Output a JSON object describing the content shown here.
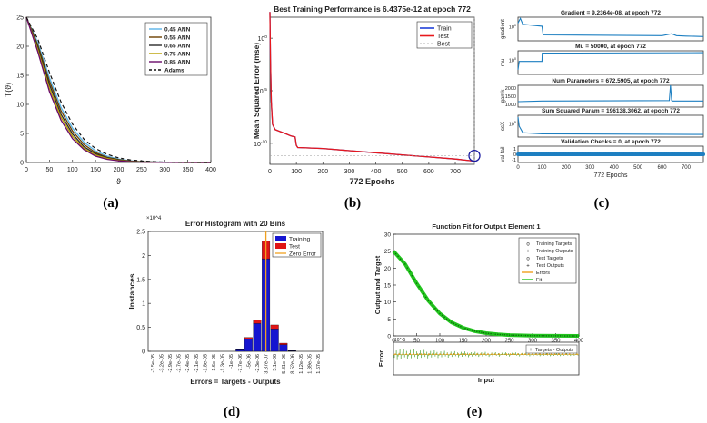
{
  "panel_labels": [
    "(a)",
    "(b)",
    "(c)",
    "(d)",
    "(e)"
  ],
  "colors": {
    "a_series": [
      "#5ab4e8",
      "#6b4000",
      "#2a2a2a",
      "#b8a000",
      "#6a0a6a"
    ],
    "train": "#1f3fd9",
    "test": "#e8181c",
    "best": "#9a9a9a",
    "perf_line": "#1d7fc1",
    "fit_green": "#22c41e",
    "error_orange": "#f0a020",
    "hist_blue": "#1515d0",
    "hist_red": "#e01515",
    "zero_line": "#f0a020"
  },
  "chart_data": [
    {
      "id": "a",
      "type": "line",
      "title": "",
      "xlabel": "ϑ",
      "ylabel": "T(ϑ)",
      "xlim": [
        0,
        400
      ],
      "ylim": [
        0,
        25
      ],
      "xticks": [
        "0",
        "50",
        "100",
        "150",
        "200",
        "250",
        "300",
        "350",
        "400"
      ],
      "yticks": [
        "0",
        "5",
        "10",
        "15",
        "20",
        "25"
      ],
      "legend": [
        "0.45 ANN",
        "0.55 ANN",
        "0.65 ANN",
        "0.75 ANN",
        "0.85 ANN",
        "Adams"
      ],
      "legend_position": "top-right",
      "x": [
        0,
        25,
        50,
        75,
        100,
        125,
        150,
        175,
        200,
        225,
        250,
        300,
        350,
        400
      ],
      "series": [
        {
          "name": "0.45 ANN",
          "values": [
            25,
            20.6,
            14.6,
            9.5,
            5.9,
            3.5,
            2.0,
            1.1,
            0.6,
            0.3,
            0.15,
            0.04,
            0.01,
            0
          ]
        },
        {
          "name": "0.55 ANN",
          "values": [
            25,
            20.2,
            14.0,
            8.9,
            5.4,
            3.1,
            1.7,
            0.9,
            0.5,
            0.25,
            0.12,
            0.03,
            0.01,
            0
          ]
        },
        {
          "name": "0.65 ANN",
          "values": [
            25,
            19.8,
            13.4,
            8.3,
            4.9,
            2.7,
            1.5,
            0.8,
            0.4,
            0.2,
            0.1,
            0.02,
            0.01,
            0
          ]
        },
        {
          "name": "0.75 ANN",
          "values": [
            25,
            19.4,
            12.8,
            7.8,
            4.5,
            2.4,
            1.3,
            0.7,
            0.35,
            0.17,
            0.08,
            0.02,
            0,
            0
          ]
        },
        {
          "name": "0.85 ANN",
          "values": [
            25,
            19.0,
            12.2,
            7.3,
            4.1,
            2.2,
            1.1,
            0.55,
            0.28,
            0.14,
            0.07,
            0.02,
            0,
            0
          ]
        },
        {
          "name": "Adams",
          "values": [
            25,
            21.2,
            15.5,
            10.4,
            6.6,
            4.0,
            2.4,
            1.4,
            0.8,
            0.45,
            0.25,
            0.07,
            0.02,
            0
          ]
        }
      ]
    },
    {
      "id": "b",
      "type": "line",
      "title": "Best Training Performance is 6.4375e-12 at epoch 772",
      "xlabel": "772 Epochs",
      "ylabel": "Mean Squared Error  (mse)",
      "xlim": [
        0,
        772
      ],
      "ylim_log10": [
        -12,
        2
      ],
      "xticks": [
        "0",
        "100",
        "200",
        "300",
        "400",
        "500",
        "600",
        "700"
      ],
      "yticks": [
        "10^0",
        "10^-5",
        "10^-10"
      ],
      "legend": [
        "Train",
        "Test",
        "Best"
      ],
      "legend_position": "top-right",
      "x": [
        0,
        2,
        5,
        10,
        20,
        40,
        60,
        80,
        95,
        100,
        105,
        200,
        300,
        400,
        500,
        600,
        700,
        772
      ],
      "log10_mse": [
        2.5,
        -2,
        -6,
        -8.2,
        -8.7,
        -8.9,
        -9.1,
        -9.3,
        -9.4,
        -10.2,
        -10.4,
        -10.5,
        -10.7,
        -10.9,
        -11.1,
        -11.3,
        -11.5,
        -11.7
      ],
      "best_epoch": 772,
      "best_log10": -11.19
    },
    {
      "id": "c",
      "type": "line",
      "xlabel": "772 Epochs",
      "xlim": [
        0,
        772
      ],
      "xticks": [
        "0",
        "100",
        "200",
        "300",
        "400",
        "500",
        "600",
        "700"
      ],
      "subplots": [
        {
          "title": "Gradient = 9.2364e-08, at epoch 772",
          "ylabel": "gradient",
          "yticks": [
            "10^0"
          ],
          "x": [
            0,
            10,
            20,
            100,
            105,
            600,
            640,
            660,
            700,
            772
          ],
          "values": [
            0.75,
            0.95,
            0.7,
            0.62,
            0.25,
            0.22,
            0.3,
            0.22,
            0.2,
            0.18
          ]
        },
        {
          "title": "Mu = 50000, at epoch 772",
          "ylabel": "mu",
          "yticks": [
            "10^0"
          ],
          "x": [
            0,
            5,
            100,
            101,
            772
          ],
          "values": [
            0.2,
            0.55,
            0.55,
            0.9,
            0.92
          ]
        },
        {
          "title": "Num Parameters = 672.5905, at epoch 772",
          "ylabel": "gamk",
          "yticks": [
            "2000",
            "1500",
            "1000"
          ],
          "x": [
            0,
            100,
            630,
            635,
            640,
            645,
            772
          ],
          "values": [
            0.25,
            0.28,
            0.3,
            1.0,
            0.3,
            0.28,
            0.28
          ]
        },
        {
          "title": "Sum Squared Param = 196138.3062, at epoch 772",
          "ylabel": "ssX",
          "yticks": [
            "10^5"
          ],
          "x": [
            0,
            5,
            20,
            100,
            772
          ],
          "values": [
            0.92,
            0.5,
            0.2,
            0.15,
            0.12
          ]
        },
        {
          "title": "Validation Checks = 0, at epoch 772",
          "ylabel": "val fail",
          "yticks": [
            "1",
            "0",
            "-1"
          ],
          "x": [
            0,
            772
          ],
          "values": [
            0.5,
            0.5
          ]
        }
      ]
    },
    {
      "id": "d",
      "type": "bar",
      "title": "Error Histogram with 20 Bins",
      "xlabel": "Errors = Targets - Outputs",
      "ylabel": "Instances",
      "y_exponent": "×10^4",
      "ylim": [
        0,
        2.5
      ],
      "yticks": [
        "0",
        "0.5",
        "1",
        "1.5",
        "2",
        "2.5"
      ],
      "legend": [
        "Training",
        "Test",
        "Zero Error"
      ],
      "legend_position": "top-right",
      "categories": [
        "-3.5e-05",
        "-3.2e-05",
        "-2.9e-05",
        "-2.7e-05",
        "-2.4e-05",
        "-2.1e-05",
        "-1.8e-05",
        "-1.6e-05",
        "-1.3e-05",
        "-1e-05",
        "-7.7e-06",
        "-5e-06",
        "-2.3e-06",
        "3.87e-07",
        "3.1e-06",
        "5.81e-06",
        "8.52e-06",
        "1.12e-05",
        "1.39e-05",
        "1.67e-05"
      ],
      "series": [
        {
          "name": "Training",
          "values": [
            0,
            0,
            0,
            0,
            0,
            0,
            0,
            0,
            0,
            0,
            0.03,
            0.25,
            0.58,
            1.93,
            0.47,
            0.14,
            0.01,
            0,
            0,
            0
          ]
        },
        {
          "name": "Test",
          "values": [
            0,
            0,
            0,
            0,
            0,
            0,
            0,
            0,
            0,
            0,
            0.005,
            0.04,
            0.07,
            0.37,
            0.08,
            0.03,
            0.003,
            0,
            0,
            0
          ]
        }
      ],
      "zero_error_index": 13
    },
    {
      "id": "e",
      "type": "line",
      "title": "Function Fit for Output Element 1",
      "ylabel": "Output and Target",
      "xlabel": "Input",
      "error_ylabel": "Error",
      "error_exponent": "×10^-5",
      "xlim": [
        0,
        400
      ],
      "ylim": [
        0,
        30
      ],
      "xticks": [
        "0",
        "50",
        "100",
        "150",
        "200",
        "250",
        "300",
        "350",
        "400"
      ],
      "yticks": [
        "0",
        "5",
        "10",
        "15",
        "20",
        "25",
        "30"
      ],
      "legend": [
        "Training Targets",
        "Training Outputs",
        "Test Targets",
        "Test Outputs",
        "Errors",
        "Fit"
      ],
      "error_legend": [
        "Targets - Outputs"
      ],
      "x": [
        0,
        25,
        50,
        75,
        100,
        125,
        150,
        175,
        200,
        225,
        250,
        300,
        350,
        400
      ],
      "values": [
        25,
        21.2,
        15.5,
        10.4,
        6.6,
        4.0,
        2.4,
        1.4,
        0.8,
        0.45,
        0.25,
        0.07,
        0.02,
        0
      ]
    }
  ]
}
